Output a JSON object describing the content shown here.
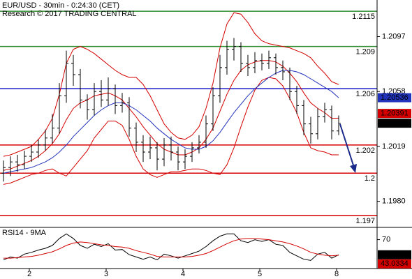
{
  "chart_data": {
    "type": "ohlc",
    "title": "EUR/USD - 30min - 0:24:30 (CET)",
    "subtitle": "Research © 2017 TRADING CENTRAL",
    "x": [
      0,
      1,
      2,
      3,
      4,
      5,
      6,
      7,
      8,
      9,
      10,
      11,
      12,
      13,
      14,
      15,
      16,
      17,
      18,
      19,
      20,
      21,
      22,
      23,
      24,
      25,
      26,
      27,
      28,
      29,
      30,
      31,
      32,
      33,
      34,
      35,
      36,
      37,
      38,
      39,
      40,
      41,
      42,
      43,
      44,
      45,
      46,
      47,
      48
    ],
    "xlim": [
      -0.5,
      53.5
    ],
    "xticks": [
      {
        "value": 3.7,
        "label": "2"
      },
      {
        "value": 14.7,
        "label": "3"
      },
      {
        "value": 25.7,
        "label": "4"
      },
      {
        "value": 36.7,
        "label": "5"
      },
      {
        "value": 47.7,
        "label": "8"
      }
    ],
    "ylim": [
      1.1962,
      1.2123
    ],
    "yticks": [
      1.2097,
      1.2058,
      1.2019,
      {
        "value": 1.198,
        "label": "1.1980"
      }
    ],
    "color": "#000000",
    "ohlc": {
      "open": [
        1.2,
        1.2004,
        1.2008,
        1.2006,
        1.2012,
        1.2015,
        1.202,
        1.2025,
        1.2032,
        1.2055,
        1.2078,
        1.207,
        1.2052,
        1.2045,
        1.2058,
        1.2052,
        1.206,
        1.2048,
        1.205,
        1.2032,
        1.2022,
        1.2015,
        1.2018,
        1.201,
        1.202,
        1.2015,
        1.2008,
        1.2012,
        1.2018,
        1.2022,
        1.2035,
        1.2055,
        1.2075,
        1.2088,
        1.209,
        1.2078,
        1.2075,
        1.208,
        1.2078,
        1.2082,
        1.2075,
        1.2072,
        1.2058,
        1.2048,
        1.2035,
        1.2028,
        1.204,
        1.2045,
        1.203
      ],
      "high": [
        1.2009,
        1.2012,
        1.2013,
        1.2016,
        1.202,
        1.2024,
        1.2031,
        1.2042,
        1.2064,
        1.2087,
        1.2084,
        1.2074,
        1.2056,
        1.2064,
        1.2066,
        1.2068,
        1.2063,
        1.2057,
        1.2054,
        1.2036,
        1.2027,
        1.2026,
        1.2022,
        1.2025,
        1.2026,
        1.2019,
        1.2017,
        1.2022,
        1.2027,
        1.2041,
        1.2061,
        1.2084,
        1.2094,
        1.2096,
        1.2093,
        1.2084,
        1.2086,
        1.2085,
        1.2087,
        1.2085,
        1.208,
        1.2075,
        1.2062,
        1.2052,
        1.204,
        1.2046,
        1.205,
        1.2048,
        1.2041
      ],
      "low": [
        1.1994,
        1.1998,
        1.2001,
        1.2003,
        1.2008,
        1.2011,
        1.2016,
        1.2021,
        1.2028,
        1.205,
        1.2062,
        1.2046,
        1.2038,
        1.2041,
        1.2047,
        1.2048,
        1.2042,
        1.2043,
        1.2026,
        1.2015,
        1.2008,
        1.201,
        1.2002,
        1.2005,
        1.2009,
        1.2002,
        1.2003,
        1.2008,
        1.2014,
        1.2018,
        1.203,
        1.205,
        1.207,
        1.208,
        1.2072,
        1.2069,
        1.2071,
        1.2073,
        1.2074,
        1.207,
        1.2066,
        1.2052,
        1.2042,
        1.2027,
        1.2021,
        1.2024,
        1.2036,
        1.2024,
        1.2027
      ],
      "close": [
        1.2004,
        1.2008,
        1.2006,
        1.2012,
        1.2015,
        1.202,
        1.2025,
        1.2032,
        1.2055,
        1.2078,
        1.207,
        1.2052,
        1.2045,
        1.2058,
        1.2052,
        1.206,
        1.2048,
        1.205,
        1.2032,
        1.2022,
        1.2015,
        1.2018,
        1.201,
        1.202,
        1.2015,
        1.2008,
        1.2012,
        1.2018,
        1.2022,
        1.2035,
        1.2055,
        1.2075,
        1.2088,
        1.209,
        1.2078,
        1.2075,
        1.208,
        1.2078,
        1.2082,
        1.2075,
        1.2072,
        1.2058,
        1.2048,
        1.2035,
        1.2028,
        1.204,
        1.2045,
        1.203,
        1.20355
      ],
      "show_last": true,
      "last_color": "#000000"
    },
    "lines": [
      {
        "color": "#d40000",
        "values": [
          1.2012,
          1.2013,
          1.2015,
          1.2017,
          1.2019,
          1.2024,
          1.203,
          1.2039,
          1.2056,
          1.2078,
          1.2088,
          1.209,
          1.2088,
          1.2085,
          1.2081,
          1.2077,
          1.2073,
          1.207,
          1.2068,
          1.2068,
          1.2063,
          1.2055,
          1.2045,
          1.2035,
          1.2029,
          1.2025,
          1.2024,
          1.2027,
          1.2033,
          1.2046,
          1.2064,
          1.2089,
          1.2106,
          1.2114,
          1.2113,
          1.2107,
          1.2099,
          1.2094,
          1.2092,
          1.2091,
          1.209,
          1.2089,
          1.2087,
          1.2085,
          1.2082,
          1.2076,
          1.2071,
          1.2065,
          1.2063
        ]
      },
      {
        "color": "#d40000",
        "values": [
          1.1992,
          1.1993,
          1.1995,
          1.1997,
          1.1999,
          1.2,
          1.2002,
          1.2003,
          1.2,
          1.1998,
          1.2004,
          1.201,
          1.2016,
          1.2025,
          1.2031,
          1.2037,
          1.2037,
          1.2034,
          1.2024,
          1.2012,
          1.2003,
          1.1999,
          1.1997,
          1.1999,
          1.2001,
          1.2001,
          1.2002,
          1.2003,
          1.2003,
          1.2002,
          1.2,
          1.1999,
          1.2006,
          1.2018,
          1.2033,
          1.2047,
          1.2059,
          1.2066,
          1.2068,
          1.2067,
          1.2062,
          1.2053,
          1.2043,
          1.2029,
          1.2018,
          1.2016,
          1.2015,
          1.2013,
          1.2013
        ]
      },
      {
        "color": "#d40000",
        "show_last": true,
        "values": [
          1.2002,
          1.2003,
          1.2005,
          1.2007,
          1.2009,
          1.2012,
          1.2016,
          1.2021,
          1.2028,
          1.2038,
          1.2046,
          1.205,
          1.2052,
          1.2055,
          1.2056,
          1.2057,
          1.2055,
          1.2052,
          1.2046,
          1.204,
          1.2033,
          1.2027,
          1.2021,
          1.2017,
          1.2015,
          1.2013,
          1.2013,
          1.2015,
          1.2018,
          1.2024,
          1.2032,
          1.2044,
          1.2056,
          1.2066,
          1.2073,
          1.2077,
          1.2079,
          1.208,
          1.208,
          1.2079,
          1.2076,
          1.2071,
          1.2065,
          1.2057,
          1.205,
          1.2046,
          1.2043,
          1.2039,
          1.20391
        ]
      },
      {
        "color": "#2233bb",
        "show_last": true,
        "values": [
          1.2,
          1.2001,
          1.2002,
          1.2003,
          1.2004,
          1.2006,
          1.2008,
          1.2011,
          1.2015,
          1.202,
          1.2026,
          1.2031,
          1.2036,
          1.2041,
          1.2045,
          1.2048,
          1.205,
          1.205,
          1.2048,
          1.2045,
          1.2041,
          1.2037,
          1.2032,
          1.2028,
          1.2024,
          1.2021,
          1.2018,
          1.2017,
          1.2017,
          1.2019,
          1.2023,
          1.2029,
          1.2036,
          1.2043,
          1.2049,
          1.2055,
          1.206,
          1.2064,
          1.2068,
          1.2071,
          1.2073,
          1.2073,
          1.2072,
          1.207,
          1.2067,
          1.2064,
          1.2061,
          1.2058,
          1.20536
        ]
      }
    ],
    "levels": [
      {
        "value": 1.2115,
        "color": "#2e8b2e"
      },
      {
        "value": 1.209,
        "color": "#2e8b2e"
      },
      {
        "value": 1.206,
        "color": "#1a1acc"
      },
      {
        "value": 1.202,
        "color": "#d40000"
      },
      {
        "value": 1.2,
        "color": "#d40000"
      },
      {
        "value": 1.197,
        "color": "#d40000"
      }
    ],
    "rsi": {
      "label": "RSI14 - 9MA",
      "ylim": [
        20,
        90
      ],
      "yticks": [
        70
      ],
      "series": [
        {
          "color": "#000000",
          "values": [
            35,
            40,
            38,
            45,
            48,
            52,
            55,
            60,
            72,
            80,
            72,
            60,
            55,
            62,
            58,
            63,
            52,
            53,
            44,
            40,
            36,
            40,
            35,
            45,
            42,
            38,
            42,
            46,
            50,
            58,
            68,
            76,
            80,
            80,
            68,
            65,
            70,
            67,
            70,
            62,
            60,
            48,
            42,
            36,
            34,
            45,
            48,
            38,
            43.8117
          ]
        },
        {
          "color": "#d40000",
          "values": [
            38,
            38,
            39,
            40,
            41,
            43,
            46,
            49,
            54,
            60,
            64,
            66,
            65,
            63,
            61,
            60,
            58,
            57,
            55,
            51,
            48,
            45,
            41,
            40,
            40,
            40,
            40,
            41,
            43,
            46,
            51,
            57,
            63,
            68,
            71,
            72,
            72,
            71,
            70,
            68,
            66,
            63,
            59,
            54,
            48,
            45,
            43,
            42,
            43.0334
          ]
        }
      ]
    }
  }
}
